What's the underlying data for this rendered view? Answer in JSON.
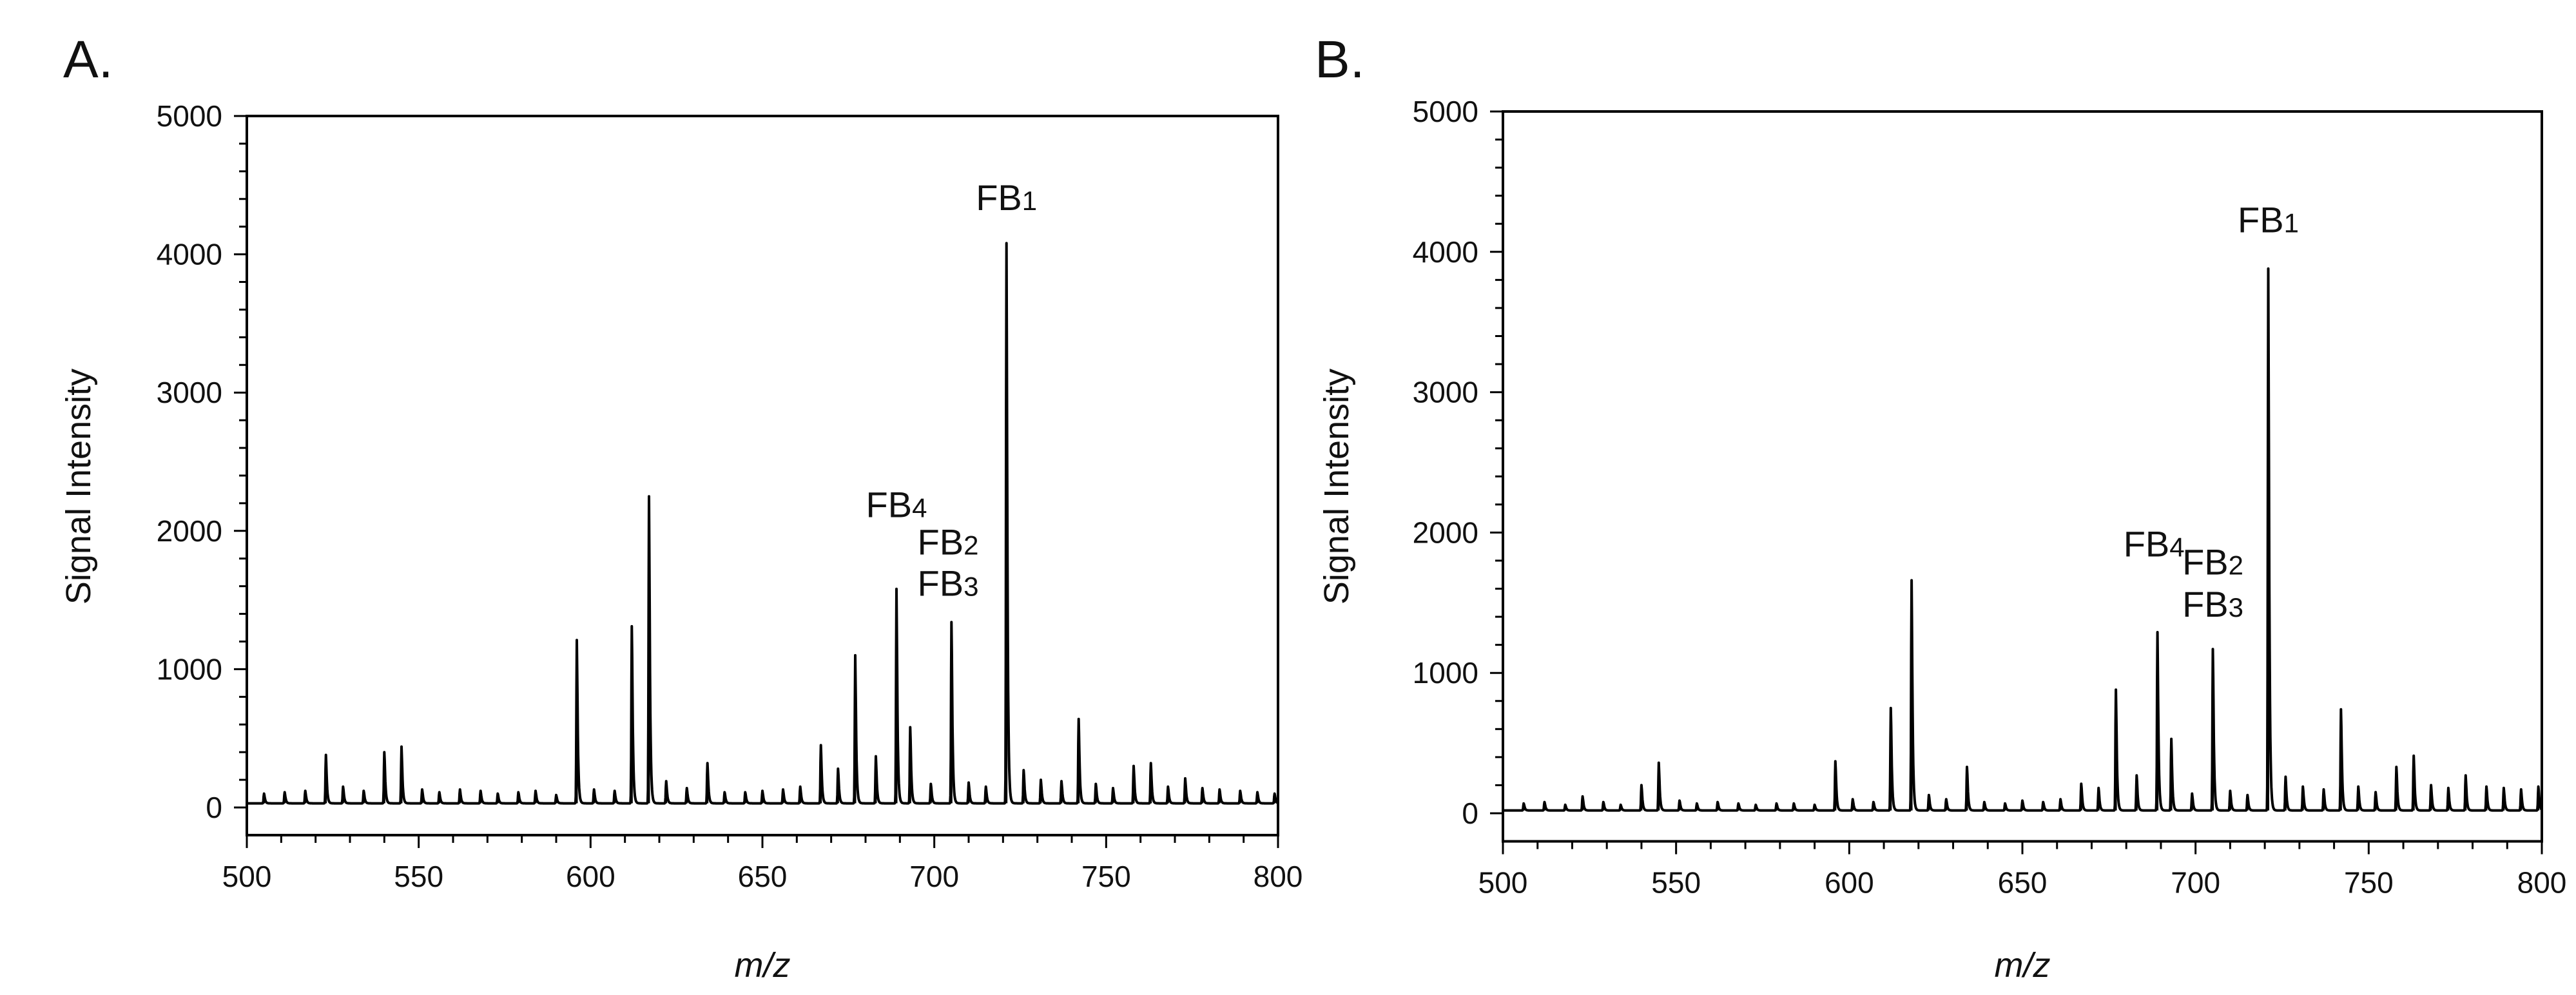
{
  "chart_data": [
    {
      "type": "line",
      "panel_label": "A.",
      "title": "",
      "xlabel": "m/z",
      "ylabel": "Signal Intensity",
      "xlim": [
        500,
        800
      ],
      "ylim": [
        -200,
        5000
      ],
      "x_ticks": [
        500,
        550,
        600,
        650,
        700,
        750,
        800
      ],
      "y_ticks": [
        0,
        1000,
        2000,
        3000,
        4000,
        5000
      ],
      "x_tick_labels": [
        "500",
        "550",
        "600",
        "650",
        "700",
        "750",
        "800"
      ],
      "y_tick_labels": [
        "0",
        "1000",
        "2000",
        "3000",
        "4000",
        "5000"
      ],
      "grid": false,
      "baseline": 30,
      "peaks": [
        {
          "x": 505,
          "y": 70
        },
        {
          "x": 511,
          "y": 80
        },
        {
          "x": 517,
          "y": 90
        },
        {
          "x": 523,
          "y": 350
        },
        {
          "x": 528,
          "y": 120
        },
        {
          "x": 534,
          "y": 90
        },
        {
          "x": 540,
          "y": 370
        },
        {
          "x": 545,
          "y": 410
        },
        {
          "x": 551,
          "y": 100
        },
        {
          "x": 556,
          "y": 80
        },
        {
          "x": 562,
          "y": 100
        },
        {
          "x": 568,
          "y": 90
        },
        {
          "x": 573,
          "y": 70
        },
        {
          "x": 579,
          "y": 80
        },
        {
          "x": 584,
          "y": 90
        },
        {
          "x": 590,
          "y": 60
        },
        {
          "x": 596,
          "y": 1180
        },
        {
          "x": 601,
          "y": 100
        },
        {
          "x": 607,
          "y": 90
        },
        {
          "x": 612,
          "y": 1280
        },
        {
          "x": 617,
          "y": 2220
        },
        {
          "x": 622,
          "y": 160
        },
        {
          "x": 628,
          "y": 110
        },
        {
          "x": 634,
          "y": 290
        },
        {
          "x": 639,
          "y": 80
        },
        {
          "x": 645,
          "y": 80
        },
        {
          "x": 650,
          "y": 90
        },
        {
          "x": 656,
          "y": 100
        },
        {
          "x": 661,
          "y": 120
        },
        {
          "x": 667,
          "y": 420
        },
        {
          "x": 672,
          "y": 250
        },
        {
          "x": 677,
          "y": 1070
        },
        {
          "x": 683,
          "y": 340
        },
        {
          "x": 689,
          "y": 1550
        },
        {
          "x": 693,
          "y": 550
        },
        {
          "x": 699,
          "y": 140
        },
        {
          "x": 705,
          "y": 1310
        },
        {
          "x": 710,
          "y": 150
        },
        {
          "x": 715,
          "y": 120
        },
        {
          "x": 721,
          "y": 4050
        },
        {
          "x": 726,
          "y": 240
        },
        {
          "x": 731,
          "y": 170
        },
        {
          "x": 737,
          "y": 160
        },
        {
          "x": 742,
          "y": 610
        },
        {
          "x": 747,
          "y": 140
        },
        {
          "x": 752,
          "y": 110
        },
        {
          "x": 758,
          "y": 270
        },
        {
          "x": 763,
          "y": 290
        },
        {
          "x": 768,
          "y": 120
        },
        {
          "x": 773,
          "y": 180
        },
        {
          "x": 778,
          "y": 110
        },
        {
          "x": 783,
          "y": 100
        },
        {
          "x": 789,
          "y": 90
        },
        {
          "x": 794,
          "y": 80
        },
        {
          "x": 799,
          "y": 70
        }
      ],
      "annotations": [
        {
          "base": "FB",
          "sub": "1",
          "x": 721,
          "y": 4320
        },
        {
          "base": "FB",
          "sub": "4",
          "x": 689,
          "y": 2100
        },
        {
          "base": "FB",
          "sub": "2",
          "x": 704,
          "y": 1830
        },
        {
          "base": "FB",
          "sub": "3",
          "x": 704,
          "y": 1530
        }
      ]
    },
    {
      "type": "line",
      "panel_label": "B.",
      "title": "",
      "xlabel": "m/z",
      "ylabel": "Signal Intensity",
      "xlim": [
        500,
        800
      ],
      "ylim": [
        -200,
        5000
      ],
      "x_ticks": [
        500,
        550,
        600,
        650,
        700,
        750,
        800
      ],
      "y_ticks": [
        0,
        1000,
        2000,
        3000,
        4000,
        5000
      ],
      "x_tick_labels": [
        "500",
        "550",
        "600",
        "650",
        "700",
        "750",
        "800"
      ],
      "y_tick_labels": [
        "0",
        "1000",
        "2000",
        "3000",
        "4000",
        "5000"
      ],
      "grid": false,
      "baseline": 20,
      "peaks": [
        {
          "x": 506,
          "y": 50
        },
        {
          "x": 512,
          "y": 60
        },
        {
          "x": 518,
          "y": 40
        },
        {
          "x": 523,
          "y": 100
        },
        {
          "x": 529,
          "y": 60
        },
        {
          "x": 534,
          "y": 40
        },
        {
          "x": 540,
          "y": 180
        },
        {
          "x": 545,
          "y": 340
        },
        {
          "x": 551,
          "y": 70
        },
        {
          "x": 556,
          "y": 50
        },
        {
          "x": 562,
          "y": 60
        },
        {
          "x": 568,
          "y": 50
        },
        {
          "x": 573,
          "y": 40
        },
        {
          "x": 579,
          "y": 50
        },
        {
          "x": 584,
          "y": 50
        },
        {
          "x": 590,
          "y": 40
        },
        {
          "x": 596,
          "y": 350
        },
        {
          "x": 601,
          "y": 80
        },
        {
          "x": 607,
          "y": 60
        },
        {
          "x": 612,
          "y": 730
        },
        {
          "x": 618,
          "y": 1640
        },
        {
          "x": 623,
          "y": 110
        },
        {
          "x": 628,
          "y": 80
        },
        {
          "x": 634,
          "y": 310
        },
        {
          "x": 639,
          "y": 60
        },
        {
          "x": 645,
          "y": 50
        },
        {
          "x": 650,
          "y": 70
        },
        {
          "x": 656,
          "y": 60
        },
        {
          "x": 661,
          "y": 80
        },
        {
          "x": 667,
          "y": 190
        },
        {
          "x": 672,
          "y": 160
        },
        {
          "x": 677,
          "y": 860
        },
        {
          "x": 683,
          "y": 250
        },
        {
          "x": 689,
          "y": 1270
        },
        {
          "x": 693,
          "y": 510
        },
        {
          "x": 699,
          "y": 120
        },
        {
          "x": 705,
          "y": 1150
        },
        {
          "x": 710,
          "y": 140
        },
        {
          "x": 715,
          "y": 110
        },
        {
          "x": 721,
          "y": 3860
        },
        {
          "x": 726,
          "y": 240
        },
        {
          "x": 731,
          "y": 170
        },
        {
          "x": 737,
          "y": 150
        },
        {
          "x": 742,
          "y": 720
        },
        {
          "x": 747,
          "y": 170
        },
        {
          "x": 752,
          "y": 130
        },
        {
          "x": 758,
          "y": 310
        },
        {
          "x": 763,
          "y": 390
        },
        {
          "x": 768,
          "y": 180
        },
        {
          "x": 773,
          "y": 160
        },
        {
          "x": 778,
          "y": 250
        },
        {
          "x": 784,
          "y": 170
        },
        {
          "x": 789,
          "y": 160
        },
        {
          "x": 794,
          "y": 150
        },
        {
          "x": 799,
          "y": 170
        }
      ],
      "annotations": [
        {
          "base": "FB",
          "sub": "1",
          "x": 721,
          "y": 4140
        },
        {
          "base": "FB",
          "sub": "4",
          "x": 688,
          "y": 1830
        },
        {
          "base": "FB",
          "sub": "2",
          "x": 705,
          "y": 1700
        },
        {
          "base": "FB",
          "sub": "3",
          "x": 705,
          "y": 1400
        }
      ]
    }
  ]
}
